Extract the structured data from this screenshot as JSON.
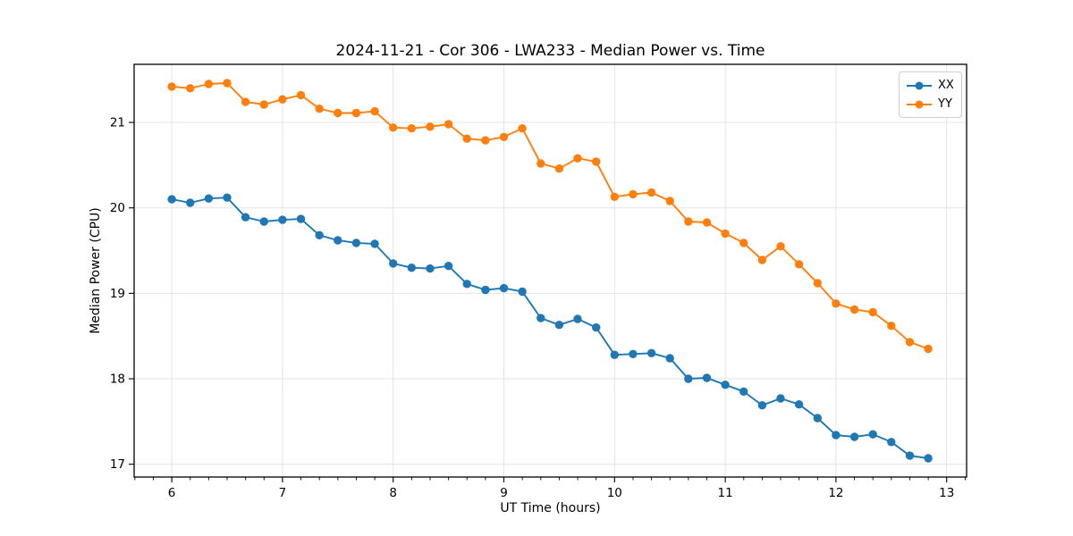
{
  "chart_data": {
    "type": "line",
    "title": "2024-11-21 - Cor 306 - LWA233 - Median Power vs. Time",
    "xlabel": "UT Time (hours)",
    "ylabel": "Median Power (CPU)",
    "x": [
      6,
      6.1667,
      6.3333,
      6.5,
      6.6667,
      6.8333,
      7,
      7.1667,
      7.3333,
      7.5,
      7.6667,
      7.8333,
      8,
      8.1667,
      8.3333,
      8.5,
      8.6667,
      8.8333,
      9,
      9.1667,
      9.3333,
      9.5,
      9.6667,
      9.8333,
      10,
      10.1667,
      10.3333,
      10.5,
      10.6667,
      10.8333,
      11,
      11.1667,
      11.3333,
      11.5,
      11.6667,
      11.8333,
      12,
      12.1667,
      12.3333,
      12.5,
      12.6667,
      12.8333
    ],
    "series": [
      {
        "name": "XX",
        "color": "#1f77b4",
        "values": [
          20.1,
          20.06,
          20.11,
          20.12,
          19.89,
          19.84,
          19.86,
          19.87,
          19.68,
          19.62,
          19.59,
          19.58,
          19.35,
          19.3,
          19.29,
          19.32,
          19.11,
          19.04,
          19.06,
          19.02,
          18.71,
          18.63,
          18.7,
          18.6,
          18.28,
          18.29,
          18.3,
          18.24,
          18.0,
          18.01,
          17.93,
          17.85,
          17.69,
          17.77,
          17.7,
          17.54,
          17.34,
          17.32,
          17.35,
          17.26,
          17.1,
          17.07
        ]
      },
      {
        "name": "YY",
        "color": "#ff7f0e",
        "values": [
          21.42,
          21.4,
          21.45,
          21.46,
          21.24,
          21.21,
          21.27,
          21.32,
          21.16,
          21.11,
          21.11,
          21.13,
          20.94,
          20.93,
          20.95,
          20.98,
          20.81,
          20.79,
          20.83,
          20.93,
          20.52,
          20.46,
          20.58,
          20.54,
          20.13,
          20.16,
          20.18,
          20.08,
          19.84,
          19.83,
          19.7,
          19.59,
          19.39,
          19.55,
          19.34,
          19.12,
          18.88,
          18.81,
          18.78,
          18.62,
          18.43,
          18.35
        ]
      }
    ],
    "xlim": [
      5.66,
      13.18
    ],
    "ylim": [
      16.85,
      21.68
    ],
    "xticks": [
      6,
      7,
      8,
      9,
      10,
      11,
      12,
      13
    ],
    "yticks": [
      17,
      18,
      19,
      20,
      21
    ],
    "x_minor_interval": 0.16667,
    "grid": true,
    "grid_color": "#e3e3e3",
    "spine_color": "#000000",
    "legend": {
      "position": "upper right",
      "entries": [
        "XX",
        "YY"
      ]
    },
    "marker": "circle",
    "marker_size": 4.7,
    "line_width": 1.9
  }
}
